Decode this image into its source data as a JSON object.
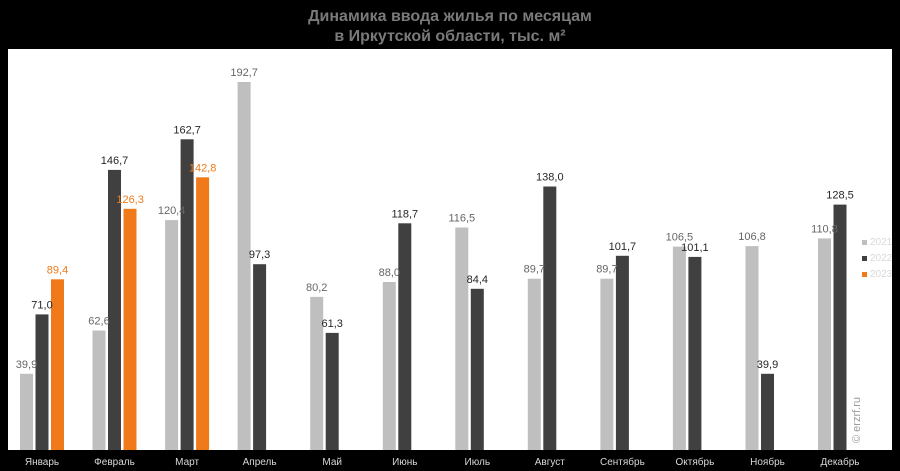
{
  "title": {
    "line1": "Динамика ввода жилья по месяцам",
    "line2": "в Иркутской области, тыс. м²"
  },
  "watermark": "© erzrf.ru",
  "colors": {
    "page_background": "#000000",
    "plot_background": "#ffffff",
    "series_2021": "#bfbfbf",
    "series_2022": "#404040",
    "series_2023": "#f07a1a"
  },
  "chart_data": {
    "type": "bar",
    "title": "Динамика ввода жилья по месяцам в Иркутской области, тыс. м²",
    "categories": [
      "Январь",
      "Февраль",
      "Март",
      "Апрель",
      "Май",
      "Июнь",
      "Июль",
      "Август",
      "Сентябрь",
      "Октябрь",
      "Ноябрь",
      "Декабрь"
    ],
    "series": [
      {
        "name": "2021",
        "color": "#bfbfbf",
        "values": [
          39.9,
          62.6,
          120.4,
          192.7,
          80.2,
          88.0,
          116.5,
          89.7,
          89.7,
          106.5,
          106.8,
          110.8
        ],
        "labels": [
          "39,9",
          "62,6",
          "120,4",
          "192,7",
          "80,2",
          "88,0",
          "116,5",
          "89,7",
          "89,7",
          "106,5",
          "106,8",
          "110,8"
        ]
      },
      {
        "name": "2022",
        "color": "#404040",
        "values": [
          71.0,
          146.7,
          162.7,
          97.3,
          61.3,
          118.7,
          84.4,
          138.0,
          101.7,
          101.1,
          39.9,
          128.5
        ],
        "labels": [
          "71,0",
          "146,7",
          "162,7",
          "97,3",
          "61,3",
          "118,7",
          "84,4",
          "138,0",
          "101,7",
          "101,1",
          "39,9",
          "128,5"
        ]
      },
      {
        "name": "2023",
        "color": "#f07a1a",
        "values": [
          89.4,
          126.3,
          142.8,
          null,
          null,
          null,
          null,
          null,
          null,
          null,
          null,
          null
        ],
        "labels": [
          "89,4",
          "126,3",
          "142,8",
          "",
          "",
          "",
          "",
          "",
          "",
          "",
          "",
          ""
        ]
      }
    ],
    "ylim": [
      0,
      210
    ],
    "grid": false,
    "legend": "right"
  }
}
